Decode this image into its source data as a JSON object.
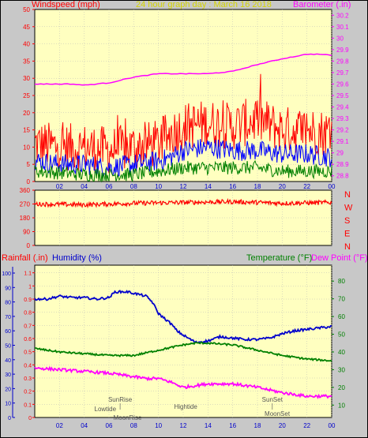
{
  "header": {
    "left_label": "Windspeed (mph)",
    "title": "24 hour graph day : March 16 2018",
    "right_label": "Barometer (.in)"
  },
  "bottom_header": {
    "rainfall_label": "Rainfall (.in)",
    "humidity_label": "Humidity (%)",
    "temperature_label": "Temperature (°F)",
    "dewpoint_label": "Dew Point (°F)"
  },
  "colors": {
    "wind_gust": "#ff0000",
    "wind_avg": "#0000ff",
    "wind_low": "#008000",
    "barometer": "#ff00ff",
    "direction": "#ff0000",
    "humidity": "#0000cc",
    "temperature": "#008000",
    "dewpoint": "#ff00ff",
    "plot_bg": "#ffffc0",
    "page_bg": "#c8c8c8"
  },
  "chart_data": [
    {
      "type": "line",
      "x_ticks": [
        "02",
        "04",
        "06",
        "08",
        "10",
        "12",
        "14",
        "16",
        "18",
        "20",
        "22",
        "00"
      ],
      "left_axis": {
        "label": "Windspeed (mph)",
        "range": [
          0,
          50
        ],
        "ticks": [
          0,
          5,
          10,
          15,
          20,
          25,
          30,
          35,
          40,
          45,
          50
        ]
      },
      "right_axis": {
        "label": "Barometer (.in)",
        "range": [
          28.75,
          30.25
        ],
        "ticks": [
          "28.8",
          "28.9",
          "29",
          "29.1",
          "29.2",
          "29.3",
          "29.4",
          "29.5",
          "29.6",
          "29.7",
          "29.8",
          "29.9",
          "30",
          "30.1",
          "30.2"
        ]
      },
      "series": [
        {
          "name": "Windspeed (mph)",
          "color": "#ff0000",
          "hours": [
            0,
            2,
            4,
            6,
            8,
            10,
            11,
            12,
            14,
            16,
            17,
            18,
            20,
            22,
            24
          ],
          "values": [
            11,
            10,
            10,
            9,
            10,
            11,
            14,
            16,
            17,
            16,
            17,
            18,
            15,
            15,
            14
          ]
        },
        {
          "color": "#0000ff",
          "hours": [
            0,
            2,
            4,
            6,
            8,
            10,
            11,
            12,
            14,
            16,
            18,
            20,
            22,
            24
          ],
          "values": [
            6,
            5,
            5,
            4,
            5,
            6,
            7,
            9,
            10,
            9,
            9,
            8,
            8,
            7
          ]
        },
        {
          "color": "#008000",
          "hours": [
            0,
            4,
            8,
            10,
            12,
            14,
            16,
            18,
            20,
            22,
            24
          ],
          "values": [
            3,
            2,
            2,
            3,
            4,
            4,
            4,
            4,
            3,
            3,
            3
          ]
        },
        {
          "name": "Barometer (.in)",
          "color": "#ff00ff",
          "hours": [
            0,
            3,
            4,
            6,
            8,
            10,
            12,
            14,
            16,
            18,
            20,
            22,
            23,
            24
          ],
          "values": [
            29.6,
            29.6,
            29.59,
            29.61,
            29.66,
            29.69,
            29.69,
            29.69,
            29.71,
            29.77,
            29.82,
            29.86,
            29.86,
            29.85
          ]
        }
      ]
    },
    {
      "type": "line",
      "x_ticks": [
        "02",
        "04",
        "06",
        "08",
        "10",
        "12",
        "14",
        "16",
        "18",
        "20",
        "22",
        "00"
      ],
      "left_axis": {
        "ticks": [
          "0",
          "90",
          "180",
          "270",
          "360"
        ],
        "range": [
          0,
          360
        ]
      },
      "right_axis": {
        "ticks": [
          "N",
          "W",
          "S",
          "E",
          "N"
        ]
      },
      "series": [
        {
          "color": "#ff0000",
          "hours": [
            0,
            4,
            8,
            12,
            16,
            20,
            24
          ],
          "values": [
            270,
            265,
            275,
            280,
            285,
            275,
            280
          ]
        }
      ]
    },
    {
      "type": "line",
      "x_ticks": [
        "02",
        "04",
        "06",
        "08",
        "10",
        "12",
        "14",
        "16",
        "18",
        "20",
        "22",
        "00"
      ],
      "rain_axis": {
        "label": "Rainfall (.in)",
        "ticks": [
          "0",
          "0.1",
          "0.2",
          "0.3",
          "0.4",
          "0.5",
          "0.6",
          "0.7",
          "0.8",
          "0.9",
          "1",
          "1.1"
        ],
        "range": [
          0,
          1.2
        ]
      },
      "humidity_axis": {
        "label": "Humidity (%)",
        "ticks": [
          "0",
          "10",
          "20",
          "30",
          "40",
          "50",
          "60",
          "70",
          "80",
          "90",
          "100"
        ],
        "range": [
          0,
          100
        ]
      },
      "temp_axis": {
        "label": "Temperature (°F)",
        "ticks": [
          "10",
          "20",
          "30",
          "40",
          "50",
          "60",
          "70",
          "80"
        ],
        "range": [
          3,
          89
        ]
      },
      "series": [
        {
          "name": "Humidity (%)",
          "color": "#0000cc",
          "hours": [
            0,
            1,
            2,
            3,
            4,
            5,
            6,
            6.5,
            7,
            7.5,
            8,
            9,
            9.5,
            10,
            11,
            11.5,
            12,
            13,
            14,
            15,
            16,
            17,
            18,
            19,
            20,
            21,
            22,
            23,
            24
          ],
          "values": [
            82,
            82,
            84,
            83,
            83,
            82,
            83,
            87,
            87,
            87,
            86,
            84,
            80,
            72,
            65,
            60,
            57,
            52,
            53,
            56,
            55,
            54,
            54,
            55,
            58,
            60,
            61,
            62,
            63
          ]
        },
        {
          "name": "Temperature (°F)",
          "color": "#008000",
          "hours": [
            0,
            2,
            4,
            6,
            8,
            10,
            12,
            13,
            14,
            16,
            18,
            20,
            22,
            24
          ],
          "values": [
            42,
            40,
            39,
            38,
            38,
            41,
            44,
            45,
            45,
            44,
            41,
            38,
            36,
            35
          ]
        },
        {
          "name": "Dew Point (°F)",
          "color": "#ff00ff",
          "hours": [
            0,
            2,
            4,
            6,
            8,
            9,
            10,
            11,
            12,
            14,
            16,
            18,
            20,
            22,
            24
          ],
          "values": [
            31,
            30,
            29,
            28,
            26,
            25,
            25,
            23,
            20,
            22,
            22,
            20,
            17,
            15,
            15
          ]
        }
      ],
      "annotations": [
        {
          "text": "SunRise",
          "hour": 6.9
        },
        {
          "text": "Lowtide",
          "hour": 5.7
        },
        {
          "text": "MoonRise",
          "hour": 7.5
        },
        {
          "text": "Hightide",
          "hour": 12.2
        },
        {
          "text": "SunSet",
          "hour": 19.2
        },
        {
          "text": "MoonSet",
          "hour": 19.6
        }
      ]
    }
  ]
}
